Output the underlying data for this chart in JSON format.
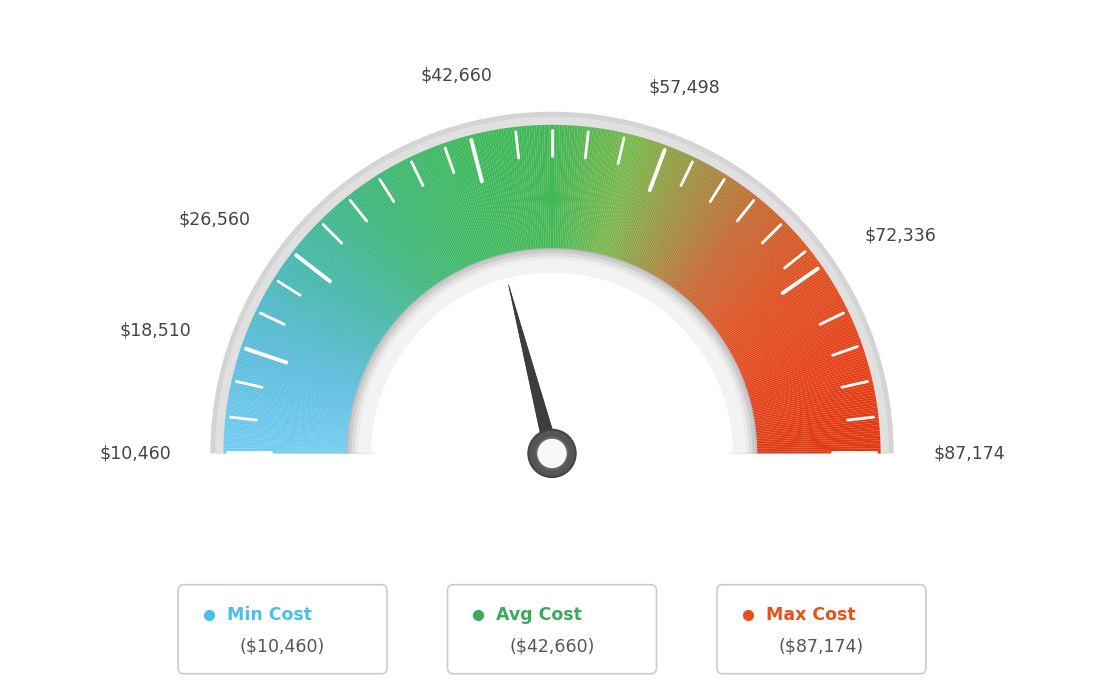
{
  "min_val": 10460,
  "max_val": 87174,
  "avg_val": 42660,
  "tick_values": [
    10460,
    18510,
    26560,
    42660,
    57498,
    72336,
    87174
  ],
  "legend": [
    {
      "label": "Min Cost",
      "value": "($10,460)",
      "color": "#4bbfe8"
    },
    {
      "label": "Avg Cost",
      "value": "($42,660)",
      "color": "#3aaa5c"
    },
    {
      "label": "Max Cost",
      "value": "($87,174)",
      "color": "#e8511a"
    }
  ],
  "bg_color": "#ffffff",
  "gauge_colors": [
    [
      0.0,
      "#73cef4"
    ],
    [
      0.1,
      "#5bbde0"
    ],
    [
      0.2,
      "#46b8b0"
    ],
    [
      0.3,
      "#3db87a"
    ],
    [
      0.4,
      "#3dba5e"
    ],
    [
      0.5,
      "#42b854"
    ],
    [
      0.58,
      "#7ab84a"
    ],
    [
      0.65,
      "#a09040"
    ],
    [
      0.72,
      "#c86830"
    ],
    [
      0.8,
      "#e05020"
    ],
    [
      0.9,
      "#e84018"
    ],
    [
      1.0,
      "#e03810"
    ]
  ]
}
